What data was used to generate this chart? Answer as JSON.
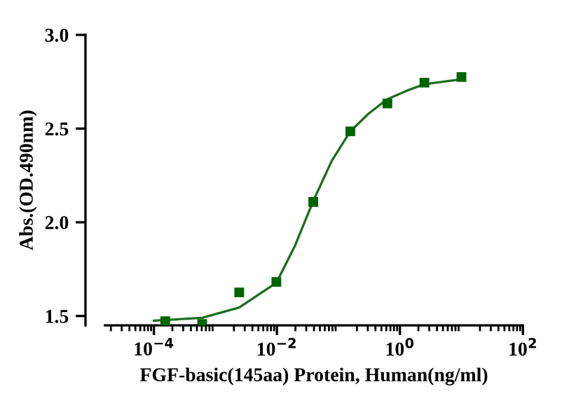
{
  "chart_data": {
    "type": "scatter",
    "xlabel": "FGF-basic(145aa) Protein, Human(ng/ml)",
    "ylabel": "Abs.(OD.490nm)",
    "log": "x",
    "grid": false,
    "legend": false,
    "series": [
      {
        "color": "#006400",
        "marker": "square",
        "x": [
          0.000153,
          0.00061,
          0.00244,
          0.0098,
          0.039,
          0.156,
          0.625,
          2.5,
          10
        ],
        "values": [
          1.472,
          1.457,
          1.626,
          1.682,
          2.109,
          2.485,
          2.634,
          2.745,
          2.775
        ]
      },
      {
        "type": "line",
        "color": "#1e6e1e",
        "line_style": "solid",
        "x": [
          0.0001,
          0.00061,
          0.00244,
          0.0098,
          0.0196,
          0.039,
          0.078,
          0.156,
          0.31,
          0.625,
          1.25,
          2.5,
          10
        ],
        "values": [
          1.475,
          1.49,
          1.545,
          1.677,
          1.874,
          2.114,
          2.328,
          2.485,
          2.58,
          2.657,
          2.7,
          2.737,
          2.763
        ]
      }
    ],
    "xlim": [
      1.6e-05,
      100
    ],
    "ylim": [
      1.45,
      3.0
    ],
    "xticks": [
      {
        "value": 0.0001,
        "label": "10$^{−4}$"
      },
      {
        "value": 0.01,
        "label": "10$^{−2}$"
      },
      {
        "value": 1,
        "label": "10$^{0}$"
      },
      {
        "value": 100,
        "label": "10$^{2}$"
      }
    ],
    "yticks": [
      1.5,
      {
        "value": 2,
        "label": "2.0"
      },
      2.5,
      {
        "value": 3,
        "label": "3.0"
      }
    ]
  }
}
